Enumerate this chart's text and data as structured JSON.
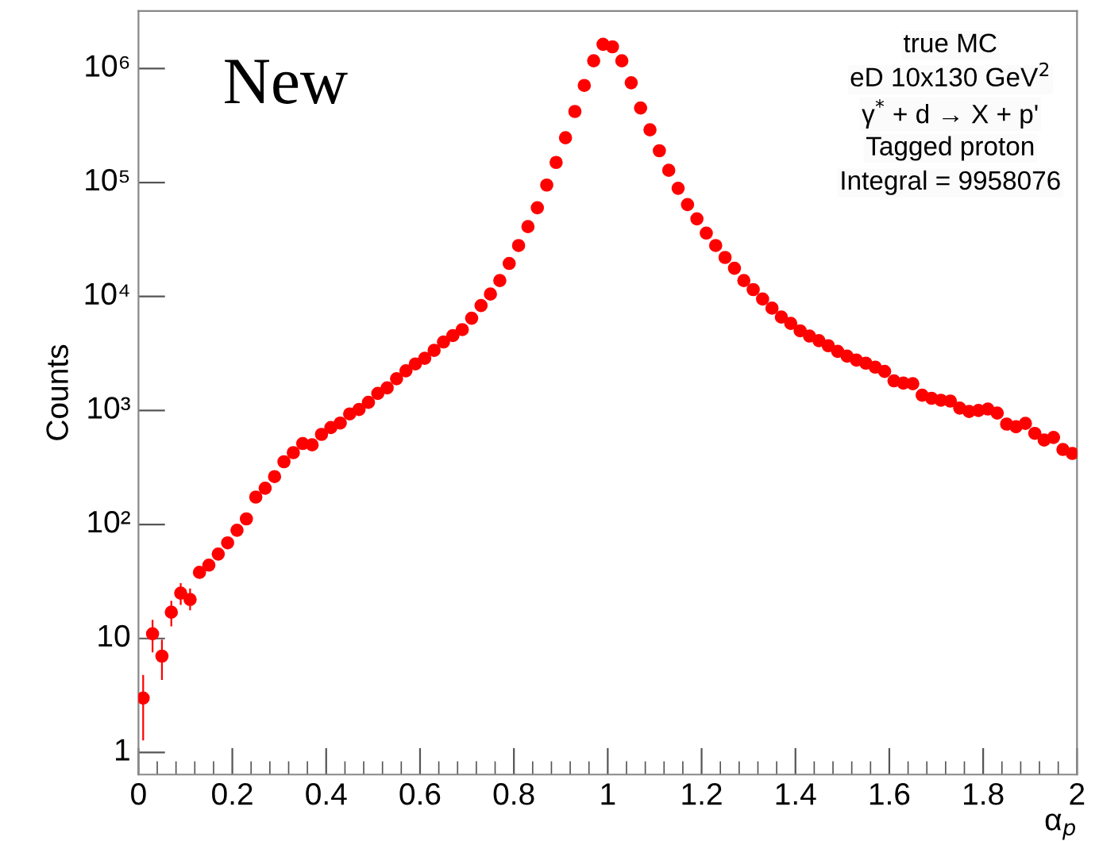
{
  "chart_data": {
    "type": "scatter",
    "xlabel": "α$_{p}$",
    "ylabel": "Counts",
    "annotations": [
      "New",
      "true MC",
      "eD 10x130 GeV$^{2}$",
      "γ$^{*}$ + d → X + p'",
      "Tagged proton",
      "Integral = 9958076"
    ],
    "x": [
      0.01,
      0.03,
      0.05,
      0.07,
      0.09,
      0.11,
      0.13,
      0.15,
      0.17,
      0.19,
      0.21,
      0.23,
      0.25,
      0.27,
      0.29,
      0.31,
      0.33,
      0.35,
      0.37,
      0.39,
      0.41,
      0.43,
      0.45,
      0.47,
      0.49,
      0.51,
      0.53,
      0.55,
      0.57,
      0.59,
      0.61,
      0.63,
      0.65,
      0.67,
      0.69,
      0.71,
      0.73,
      0.75,
      0.77,
      0.79,
      0.81,
      0.83,
      0.85,
      0.87,
      0.89,
      0.91,
      0.93,
      0.95,
      0.97,
      0.99,
      1.01,
      1.03,
      1.05,
      1.07,
      1.09,
      1.11,
      1.13,
      1.15,
      1.17,
      1.19,
      1.21,
      1.23,
      1.25,
      1.27,
      1.29,
      1.31,
      1.33,
      1.35,
      1.37,
      1.39,
      1.41,
      1.43,
      1.45,
      1.47,
      1.49,
      1.51,
      1.53,
      1.55,
      1.57,
      1.59,
      1.61,
      1.63,
      1.65,
      1.67,
      1.69,
      1.71,
      1.73,
      1.75,
      1.77,
      1.79,
      1.81,
      1.83,
      1.85,
      1.87,
      1.89,
      1.91,
      1.93,
      1.95,
      1.97,
      1.99
    ],
    "series": [
      {
        "color": "#ff0000",
        "values": [
          3,
          11,
          7,
          17,
          25,
          22,
          38,
          44,
          55,
          69,
          89,
          112,
          174,
          208,
          263,
          355,
          427,
          513,
          500,
          617,
          708,
          776,
          933,
          1020,
          1180,
          1410,
          1580,
          1900,
          2230,
          2560,
          2870,
          3370,
          3990,
          4540,
          5120,
          6450,
          8320,
          10500,
          13800,
          19500,
          28000,
          41000,
          60000,
          95000,
          150000,
          247000,
          420000,
          710000,
          1170000,
          1630000,
          1550000,
          1170000,
          750000,
          450000,
          290000,
          190000,
          128000,
          89000,
          64000,
          48000,
          36000,
          28000,
          22000,
          17700,
          13800,
          11500,
          9500,
          7900,
          6600,
          5800,
          5000,
          4500,
          4100,
          3700,
          3300,
          3000,
          2770,
          2600,
          2400,
          2200,
          1820,
          1740,
          1720,
          1360,
          1280,
          1230,
          1210,
          1050,
          980,
          1000,
          1030,
          950,
          760,
          720,
          770,
          630,
          550,
          580,
          455,
          420
        ],
        "errors": [
          [
            1.3,
            4.7
          ],
          [
            7.7,
            14.3
          ],
          [
            4.4,
            9.6
          ],
          [
            13,
            21
          ],
          [
            20,
            30
          ],
          [
            18,
            27
          ],
          null,
          null,
          null,
          null,
          null,
          null,
          null,
          null,
          null,
          null,
          null,
          null,
          null,
          null,
          null,
          null,
          null,
          null,
          null,
          null,
          null,
          null,
          null,
          null,
          null,
          null,
          null,
          null,
          null,
          null,
          null,
          null,
          null,
          null,
          null,
          null,
          null,
          null,
          null,
          null,
          null,
          null,
          null,
          null,
          null,
          null,
          null,
          null,
          null,
          null,
          null,
          null,
          null,
          null,
          null,
          null,
          null,
          null,
          null,
          null,
          null,
          null,
          null,
          null,
          null,
          null,
          null,
          null,
          null,
          null,
          null,
          null,
          null,
          null,
          null,
          null,
          null,
          null,
          null,
          null,
          null,
          null,
          null,
          null,
          null,
          null,
          null,
          null,
          null,
          null,
          null,
          null,
          null,
          null
        ]
      }
    ],
    "marker": "circle",
    "log": "y",
    "grid": false,
    "legend": false,
    "xlim": [
      0,
      2
    ],
    "ylim": [
      0.64,
      3200000
    ],
    "xticks": [
      0,
      0.2,
      0.4,
      0.6,
      0.8,
      1,
      1.2,
      1.4,
      1.6,
      1.8,
      2
    ],
    "yticks": [
      1,
      10,
      {
        "value": 100,
        "label": "10²"
      },
      {
        "value": 1000,
        "label": "10³"
      },
      {
        "value": 10000,
        "label": "10⁴"
      },
      {
        "value": 100000,
        "label": "10⁵"
      },
      {
        "value": 1000000,
        "label": "10⁶"
      }
    ]
  }
}
